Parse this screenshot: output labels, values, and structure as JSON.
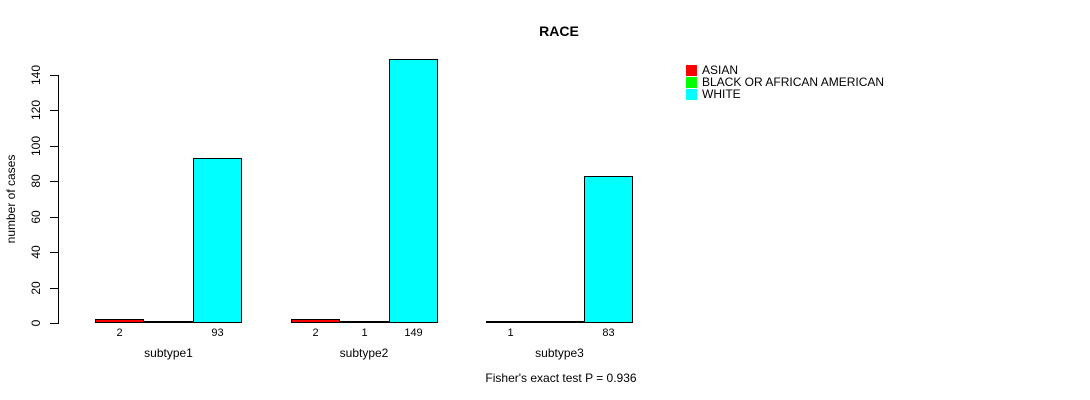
{
  "chart_data": {
    "type": "bar",
    "title": "RACE",
    "ylabel": "number of cases",
    "xlabel": "",
    "categories": [
      "subtype1",
      "subtype2",
      "subtype3"
    ],
    "series": [
      {
        "name": "ASIAN",
        "color": "#FF0000",
        "values": [
          2,
          2,
          1
        ]
      },
      {
        "name": "BLACK OR AFRICAN AMERICAN",
        "color": "#00FF00",
        "values": [
          0,
          1,
          0
        ]
      },
      {
        "name": "WHITE",
        "color": "#00FFFF",
        "values": [
          93,
          149,
          83
        ]
      }
    ],
    "bar_value_labels": [
      [
        "2",
        "",
        "93"
      ],
      [
        "2",
        "1",
        "149"
      ],
      [
        "1",
        "",
        "83"
      ]
    ],
    "yticks": [
      0,
      20,
      40,
      60,
      80,
      100,
      120,
      140
    ],
    "ylim": [
      0,
      140
    ],
    "grid": false,
    "legend_position": "right-outside-top",
    "annotation": "Fisher's exact test P = 0.936"
  }
}
